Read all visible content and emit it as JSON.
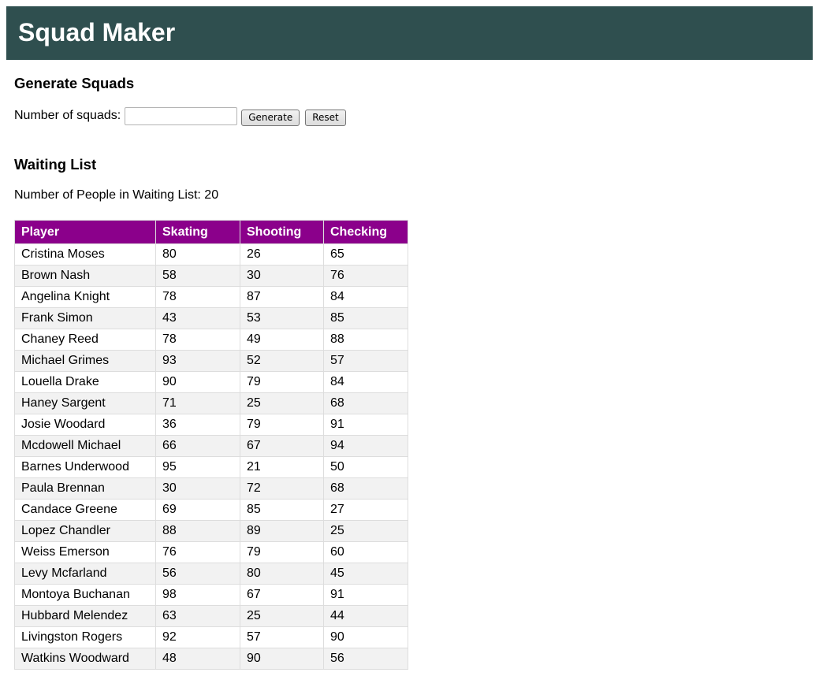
{
  "header": {
    "title": "Squad Maker"
  },
  "generate": {
    "title": "Generate Squads",
    "label": "Number of squads:",
    "input_value": "",
    "generate_label": "Generate",
    "reset_label": "Reset"
  },
  "waiting": {
    "title": "Waiting List",
    "count_text": "Number of People in Waiting List: 20",
    "columns": [
      "Player",
      "Skating",
      "Shooting",
      "Checking"
    ],
    "rows": [
      [
        "Cristina Moses",
        "80",
        "26",
        "65"
      ],
      [
        "Brown Nash",
        "58",
        "30",
        "76"
      ],
      [
        "Angelina Knight",
        "78",
        "87",
        "84"
      ],
      [
        "Frank Simon",
        "43",
        "53",
        "85"
      ],
      [
        "Chaney Reed",
        "78",
        "49",
        "88"
      ],
      [
        "Michael Grimes",
        "93",
        "52",
        "57"
      ],
      [
        "Louella Drake",
        "90",
        "79",
        "84"
      ],
      [
        "Haney Sargent",
        "71",
        "25",
        "68"
      ],
      [
        "Josie Woodard",
        "36",
        "79",
        "91"
      ],
      [
        "Mcdowell Michael",
        "66",
        "67",
        "94"
      ],
      [
        "Barnes Underwood",
        "95",
        "21",
        "50"
      ],
      [
        "Paula Brennan",
        "30",
        "72",
        "68"
      ],
      [
        "Candace Greene",
        "69",
        "85",
        "27"
      ],
      [
        "Lopez Chandler",
        "88",
        "89",
        "25"
      ],
      [
        "Weiss Emerson",
        "76",
        "79",
        "60"
      ],
      [
        "Levy Mcfarland",
        "56",
        "80",
        "45"
      ],
      [
        "Montoya Buchanan",
        "98",
        "67",
        "91"
      ],
      [
        "Hubbard Melendez",
        "63",
        "25",
        "44"
      ],
      [
        "Livingston Rogers",
        "92",
        "57",
        "90"
      ],
      [
        "Watkins Woodward",
        "48",
        "90",
        "56"
      ]
    ]
  },
  "colors": {
    "header_bg": "#2f4f4f",
    "table_header_bg": "#8b008b",
    "row_alt_bg": "#f2f2f2"
  }
}
